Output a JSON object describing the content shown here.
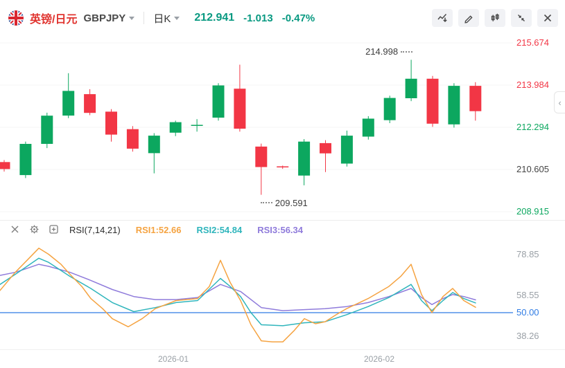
{
  "toolbar": {
    "pair_name_cn": "英镑/日元",
    "symbol": "GBPJPY",
    "interval_label": "日K",
    "last_price": "212.941",
    "change": "-1.013",
    "change_pct": "-0.47%"
  },
  "colors": {
    "up": "#0CA75F",
    "down": "#F23645",
    "quote_green": "#089981",
    "pair_red": "#E0342F",
    "rsi1": "#F5A341",
    "rsi2": "#2FB5BC",
    "rsi3": "#8F7BDB",
    "baseline_blue": "#2E7BE4"
  },
  "icons": {
    "axis_collapse": "‹"
  },
  "indicator_header": {
    "title": "RSI(7,14,21)",
    "values": [
      {
        "label": "RSI1:52.66",
        "color": "#F5A341"
      },
      {
        "label": "RSI2:54.84",
        "color": "#2FB5BC"
      },
      {
        "label": "RSI3:56.34",
        "color": "#8F7BDB"
      }
    ]
  },
  "time_axis": [
    "2026-01",
    "2026-02"
  ],
  "chart_data": [
    {
      "type": "candlestick",
      "title": "GBPJPY 日K candlestick chart",
      "ylim": [
        208.582,
        215.951
      ],
      "x_start": 6,
      "x_step": 30.9,
      "body_width": 17,
      "price_axis_labels": [
        {
          "value": "215.674",
          "price": 215.674,
          "color": "#F23645"
        },
        {
          "value": "213.984",
          "price": 213.984,
          "color": "#F23645"
        },
        {
          "value": "212.294",
          "price": 212.294,
          "color": "#0CA75F"
        },
        {
          "value": "210.605",
          "price": 210.605,
          "color": "#444444"
        },
        {
          "value": "208.915",
          "price": 208.915,
          "color": "#0CA75F"
        }
      ],
      "annotations": [
        {
          "text": "214.998",
          "price": 214.998,
          "candle_index": 19,
          "position": "high"
        },
        {
          "text": "209.591",
          "price": 209.591,
          "candle_index": 12,
          "position": "low"
        }
      ],
      "candles": [
        {
          "o": 210.9,
          "h": 210.98,
          "l": 210.52,
          "c": 210.62
        },
        {
          "o": 210.38,
          "h": 211.72,
          "l": 210.26,
          "c": 211.63
        },
        {
          "o": 211.63,
          "h": 212.88,
          "l": 211.46,
          "c": 212.76
        },
        {
          "o": 212.76,
          "h": 214.46,
          "l": 212.66,
          "c": 213.75
        },
        {
          "o": 213.62,
          "h": 213.82,
          "l": 212.78,
          "c": 212.87
        },
        {
          "o": 212.92,
          "h": 213.02,
          "l": 211.72,
          "c": 212.0
        },
        {
          "o": 212.22,
          "h": 212.34,
          "l": 211.32,
          "c": 211.44
        },
        {
          "o": 211.26,
          "h": 212.06,
          "l": 210.45,
          "c": 211.96
        },
        {
          "o": 212.08,
          "h": 212.56,
          "l": 211.94,
          "c": 212.5
        },
        {
          "o": 212.34,
          "h": 212.62,
          "l": 212.12,
          "c": 212.37
        },
        {
          "o": 212.68,
          "h": 214.06,
          "l": 212.56,
          "c": 213.97
        },
        {
          "o": 213.84,
          "h": 214.8,
          "l": 212.12,
          "c": 212.24
        },
        {
          "o": 211.52,
          "h": 211.64,
          "l": 209.591,
          "c": 210.7
        },
        {
          "o": 210.71,
          "h": 210.76,
          "l": 210.63,
          "c": 210.7
        },
        {
          "o": 210.36,
          "h": 211.82,
          "l": 209.97,
          "c": 211.72
        },
        {
          "o": 211.66,
          "h": 211.78,
          "l": 210.5,
          "c": 211.25
        },
        {
          "o": 210.84,
          "h": 212.16,
          "l": 210.72,
          "c": 211.96
        },
        {
          "o": 211.92,
          "h": 212.74,
          "l": 211.8,
          "c": 212.64
        },
        {
          "o": 212.58,
          "h": 213.56,
          "l": 212.46,
          "c": 213.47
        },
        {
          "o": 213.46,
          "h": 214.998,
          "l": 213.34,
          "c": 214.24
        },
        {
          "o": 214.24,
          "h": 214.35,
          "l": 212.31,
          "c": 212.44
        },
        {
          "o": 212.41,
          "h": 214.06,
          "l": 212.28,
          "c": 213.954
        },
        {
          "o": 213.954,
          "h": 214.1,
          "l": 212.56,
          "c": 212.941
        }
      ]
    },
    {
      "type": "line",
      "title": "RSI(7,14,21)",
      "ylim": [
        31.8,
        85.7
      ],
      "baseline": {
        "value": 50,
        "color": "#2E7BE4"
      },
      "axis_labels": [
        {
          "value": "78.85",
          "numeric": 78.85,
          "color": "#9aa0a6"
        },
        {
          "value": "58.55",
          "numeric": 58.55,
          "color": "#9aa0a6"
        },
        {
          "value": "50.00",
          "numeric": 50.0,
          "color": "#2E7BE4"
        },
        {
          "value": "38.26",
          "numeric": 38.26,
          "color": "#9aa0a6"
        }
      ],
      "series": [
        {
          "name": "RSI1",
          "current": 52.66,
          "color": "#F5A341",
          "points": [
            [
              0,
              61
            ],
            [
              22,
              70
            ],
            [
              39,
              76
            ],
            [
              56,
              82
            ],
            [
              70,
              79
            ],
            [
              88,
              74
            ],
            [
              101,
              69
            ],
            [
              118,
              63
            ],
            [
              131,
              57
            ],
            [
              148,
              52
            ],
            [
              162,
              47
            ],
            [
              185,
              43
            ],
            [
              205,
              47
            ],
            [
              224,
              52
            ],
            [
              254,
              56
            ],
            [
              285,
              57
            ],
            [
              302,
              63
            ],
            [
              318,
              76
            ],
            [
              332,
              65
            ],
            [
              347,
              56
            ],
            [
              362,
              44
            ],
            [
              377,
              36
            ],
            [
              393,
              35.5
            ],
            [
              408,
              35.5
            ],
            [
              424,
              41
            ],
            [
              439,
              47
            ],
            [
              455,
              44.5
            ],
            [
              469,
              45.5
            ],
            [
              485,
              49
            ],
            [
              500,
              52
            ],
            [
              531,
              57
            ],
            [
              561,
              63
            ],
            [
              578,
              68
            ],
            [
              593,
              74
            ],
            [
              608,
              59
            ],
            [
              623,
              50
            ],
            [
              639,
              58
            ],
            [
              653,
              62
            ],
            [
              669,
              56
            ],
            [
              686,
              52.66
            ]
          ]
        },
        {
          "name": "RSI2",
          "current": 54.84,
          "color": "#2FB5BC",
          "points": [
            [
              0,
              64
            ],
            [
              22,
              69
            ],
            [
              39,
              73
            ],
            [
              56,
              77
            ],
            [
              70,
              75
            ],
            [
              101,
              68
            ],
            [
              131,
              62
            ],
            [
              162,
              55
            ],
            [
              193,
              50.5
            ],
            [
              224,
              52.5
            ],
            [
              254,
              55
            ],
            [
              285,
              56
            ],
            [
              318,
              67
            ],
            [
              332,
              63
            ],
            [
              347,
              58
            ],
            [
              362,
              50
            ],
            [
              377,
              44
            ],
            [
              408,
              43.5
            ],
            [
              439,
              45
            ],
            [
              469,
              45.5
            ],
            [
              500,
              49
            ],
            [
              531,
              53
            ],
            [
              561,
              57.5
            ],
            [
              593,
              64
            ],
            [
              608,
              56
            ],
            [
              623,
              51
            ],
            [
              639,
              56
            ],
            [
              653,
              60
            ],
            [
              669,
              57
            ],
            [
              686,
              54.84
            ]
          ]
        },
        {
          "name": "RSI3",
          "current": 56.34,
          "color": "#8F7BDB",
          "points": [
            [
              0,
              68.5
            ],
            [
              22,
              70
            ],
            [
              39,
              72
            ],
            [
              56,
              74
            ],
            [
              70,
              73
            ],
            [
              101,
              70
            ],
            [
              131,
              66
            ],
            [
              162,
              61.5
            ],
            [
              193,
              58
            ],
            [
              224,
              56.5
            ],
            [
              254,
              56.5
            ],
            [
              285,
              57.5
            ],
            [
              318,
              64
            ],
            [
              347,
              60.5
            ],
            [
              377,
              52.5
            ],
            [
              408,
              51
            ],
            [
              439,
              51.5
            ],
            [
              469,
              52
            ],
            [
              500,
              53
            ],
            [
              531,
              55
            ],
            [
              561,
              58
            ],
            [
              593,
              62
            ],
            [
              608,
              57.5
            ],
            [
              623,
              54
            ],
            [
              639,
              57
            ],
            [
              653,
              59
            ],
            [
              669,
              58
            ],
            [
              686,
              56.34
            ]
          ]
        }
      ]
    }
  ]
}
